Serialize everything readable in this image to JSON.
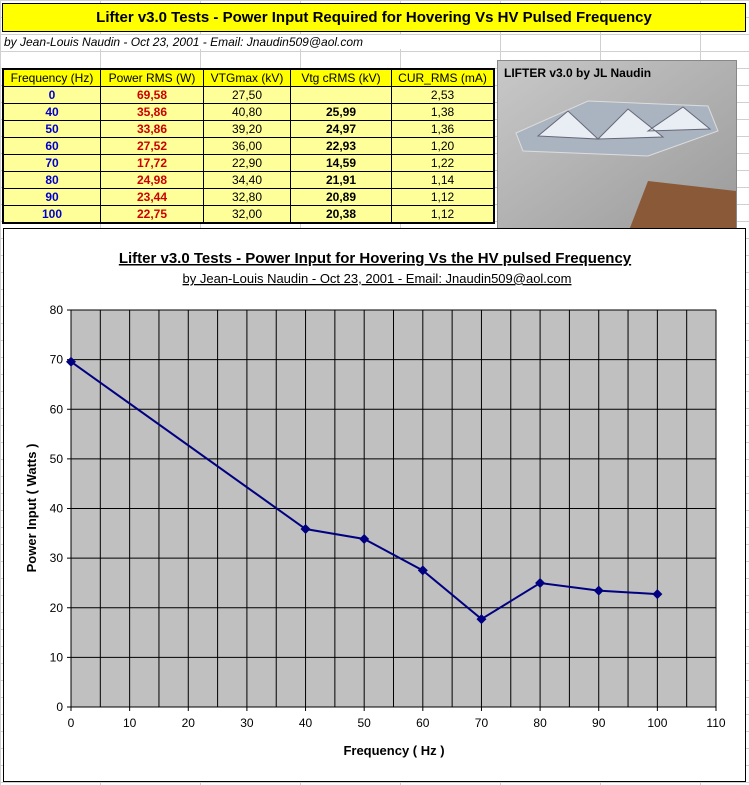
{
  "header": {
    "title": "Lifter v3.0 Tests - Power Input Required for Hovering Vs HV Pulsed Frequency",
    "byline": "by Jean-Louis Naudin - Oct 23, 2001 - Email: Jnaudin509@aol.com"
  },
  "table": {
    "columns": [
      "Frequency (Hz)",
      "Power RMS (W)",
      "VTGmax (kV)",
      "Vtg cRMS (kV)",
      "CUR_RMS (mA)"
    ],
    "rows": [
      [
        "0",
        "69,58",
        "27,50",
        "",
        "2,53"
      ],
      [
        "40",
        "35,86",
        "40,80",
        "25,99",
        "1,38"
      ],
      [
        "50",
        "33,86",
        "39,20",
        "24,97",
        "1,36"
      ],
      [
        "60",
        "27,52",
        "36,00",
        "22,93",
        "1,20"
      ],
      [
        "70",
        "17,72",
        "22,90",
        "14,59",
        "1,22"
      ],
      [
        "80",
        "24,98",
        "34,40",
        "21,91",
        "1,14"
      ],
      [
        "90",
        "23,44",
        "32,80",
        "20,89",
        "1,12"
      ],
      [
        "100",
        "22,75",
        "32,00",
        "20,38",
        "1,12"
      ]
    ]
  },
  "photo": {
    "caption": "LIFTER v3.0 by JL Naudin"
  },
  "chart_data": {
    "type": "line",
    "title": "Lifter v3.0 Tests - Power Input for Hovering Vs the HV pulsed Frequency",
    "subtitle": "by Jean-Louis Naudin - Oct 23, 2001 - Email: Jnaudin509@aol.com",
    "xlabel": "Frequency ( Hz )",
    "ylabel": "Power Input ( Watts )",
    "x": [
      0,
      40,
      50,
      60,
      70,
      80,
      90,
      100
    ],
    "series": [
      {
        "name": "Power RMS (W)",
        "color": "#000080",
        "values": [
          69.58,
          35.86,
          33.86,
          27.52,
          17.72,
          24.98,
          23.44,
          22.75
        ]
      }
    ],
    "xlim": [
      0,
      110
    ],
    "xticks": [
      0,
      10,
      20,
      30,
      40,
      50,
      60,
      70,
      80,
      90,
      100,
      110
    ],
    "ylim": [
      0,
      80
    ],
    "yticks": [
      0,
      10,
      20,
      30,
      40,
      50,
      60,
      70,
      80
    ],
    "grid": true,
    "plot_background": "#c0c0c0"
  }
}
